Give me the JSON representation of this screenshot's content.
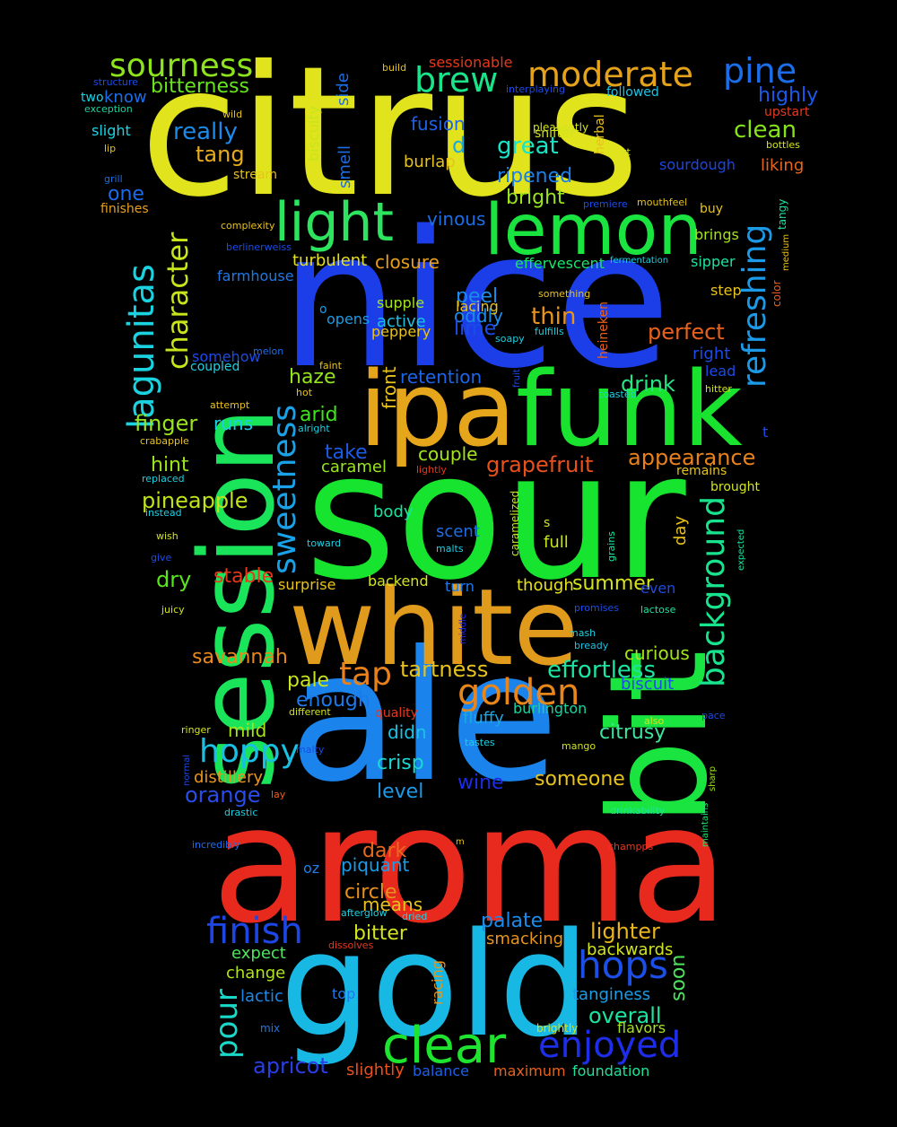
{
  "words": [
    {
      "text": "citrus",
      "color": "#e1e41c"
    },
    {
      "text": "nice",
      "color": "#1b3ee8"
    },
    {
      "text": "sour",
      "color": "#17e42e"
    },
    {
      "text": "aroma",
      "color": "#e82a1e"
    },
    {
      "text": "ale",
      "color": "#1a84ec"
    },
    {
      "text": "gold",
      "color": "#17b8e4"
    },
    {
      "text": "session",
      "color": "#19e45a"
    },
    {
      "text": "bit",
      "color": "#19e440"
    },
    {
      "text": "white",
      "color": "#e09a1c"
    },
    {
      "text": "ipa",
      "color": "#e5a61c"
    },
    {
      "text": "funk",
      "color": "#19e32e"
    },
    {
      "text": "lemon",
      "color": "#19e440"
    },
    {
      "text": "light",
      "color": "#2de45e"
    },
    {
      "text": "clear",
      "color": "#1ee42f"
    },
    {
      "text": "moderate",
      "color": "#e5a31c"
    },
    {
      "text": "sourness",
      "color": "#8de41c"
    },
    {
      "text": "pine",
      "color": "#1c6de8"
    },
    {
      "text": "brew",
      "color": "#1ae48a"
    },
    {
      "text": "golden",
      "color": "#e8861c"
    },
    {
      "text": "hops",
      "color": "#1c4fe8"
    },
    {
      "text": "enjoyed",
      "color": "#1e2ee8"
    },
    {
      "text": "finish",
      "color": "#1d47e5"
    },
    {
      "text": "hoppy",
      "color": "#1ac0e4"
    },
    {
      "text": "tap",
      "color": "#e8811c"
    },
    {
      "text": "lagunitas",
      "color": "#1ad2e0"
    },
    {
      "text": "refreshing",
      "color": "#1c9ae8"
    },
    {
      "text": "background",
      "color": "#19e48e"
    },
    {
      "text": "sweetness",
      "color": "#1aa2e8"
    },
    {
      "text": "character",
      "color": "#c7e41c"
    },
    {
      "text": "pour",
      "color": "#1ad8c7"
    },
    {
      "text": "bitterness",
      "color": "#66e41c"
    },
    {
      "text": "really",
      "color": "#1c8ae8"
    },
    {
      "text": "tang",
      "color": "#e8ab1c"
    },
    {
      "text": "one",
      "color": "#1c6ae8"
    },
    {
      "text": "great",
      "color": "#19e4c5"
    },
    {
      "text": "ripened",
      "color": "#1c7fe8"
    },
    {
      "text": "bright",
      "color": "#9ae41c"
    },
    {
      "text": "vinous",
      "color": "#1c6de8"
    },
    {
      "text": "fusion",
      "color": "#1d63e8"
    },
    {
      "text": "burlap",
      "color": "#e8c21c"
    },
    {
      "text": "d",
      "color": "#1aa8e4"
    },
    {
      "text": "clean",
      "color": "#84e41c"
    },
    {
      "text": "highly",
      "color": "#1c59e8"
    },
    {
      "text": "sourdough",
      "color": "#1c45e8"
    },
    {
      "text": "liking",
      "color": "#e8661c"
    },
    {
      "text": "closure",
      "color": "#e8a01c"
    },
    {
      "text": "turbulent",
      "color": "#e7e01c"
    },
    {
      "text": "peel",
      "color": "#1d8ce8"
    },
    {
      "text": "oddly",
      "color": "#1d8ce8"
    },
    {
      "text": "lacing",
      "color": "#e8c21c"
    },
    {
      "text": "thin",
      "color": "#e8951c"
    },
    {
      "text": "perfect",
      "color": "#e8611c"
    },
    {
      "text": "lime",
      "color": "#1e4be8"
    },
    {
      "text": "drink",
      "color": "#27e485"
    },
    {
      "text": "appearance",
      "color": "#e8811c"
    },
    {
      "text": "grapefruit",
      "color": "#e8501c"
    },
    {
      "text": "retention",
      "color": "#1c65e8"
    },
    {
      "text": "haze",
      "color": "#93e41c"
    },
    {
      "text": "arid",
      "color": "#41e41c"
    },
    {
      "text": "take",
      "color": "#1c5ae8"
    },
    {
      "text": "couple",
      "color": "#a5e41c"
    },
    {
      "text": "caramel",
      "color": "#9ae41c"
    },
    {
      "text": "finger",
      "color": "#9ae41c"
    },
    {
      "text": "runs",
      "color": "#1ad2e4"
    },
    {
      "text": "hint",
      "color": "#9ae41c"
    },
    {
      "text": "pineapple",
      "color": "#bfe41c"
    },
    {
      "text": "dry",
      "color": "#5ae41c"
    },
    {
      "text": "stable",
      "color": "#e8381c"
    },
    {
      "text": "surprise",
      "color": "#e8c21c"
    },
    {
      "text": "summer",
      "color": "#d4e41c"
    },
    {
      "text": "effortless",
      "color": "#1ae4a0"
    },
    {
      "text": "tartness",
      "color": "#e8c21c"
    },
    {
      "text": "savannah",
      "color": "#e8891c"
    },
    {
      "text": "pale",
      "color": "#c7e41c"
    },
    {
      "text": "enough",
      "color": "#1c79e8"
    },
    {
      "text": "mild",
      "color": "#a5e41c"
    },
    {
      "text": "curious",
      "color": "#a5e41c"
    },
    {
      "text": "citrusy",
      "color": "#3ee49c"
    },
    {
      "text": "crisp",
      "color": "#1ad8d2"
    },
    {
      "text": "level",
      "color": "#1c9ae8"
    },
    {
      "text": "wine",
      "color": "#1c2ce8"
    },
    {
      "text": "someone",
      "color": "#e8c21c"
    },
    {
      "text": "orange",
      "color": "#2a4ce8"
    },
    {
      "text": "distillery",
      "color": "#e8951c"
    },
    {
      "text": "didn",
      "color": "#1cc2e4"
    },
    {
      "text": "fluffy",
      "color": "#1aa8e4"
    },
    {
      "text": "dark",
      "color": "#e86a1c"
    },
    {
      "text": "piquant",
      "color": "#1a9de8"
    },
    {
      "text": "oz",
      "color": "#1c7fe8"
    },
    {
      "text": "circle",
      "color": "#e8901c"
    },
    {
      "text": "means",
      "color": "#e8c21c"
    },
    {
      "text": "palate",
      "color": "#1c8ae8"
    },
    {
      "text": "bitter",
      "color": "#d2e41c"
    },
    {
      "text": "lighter",
      "color": "#e8b41c"
    },
    {
      "text": "smacking",
      "color": "#e8951c"
    },
    {
      "text": "backwards",
      "color": "#d2e41c"
    },
    {
      "text": "soon",
      "color": "#4ee45e"
    },
    {
      "text": "expect",
      "color": "#4ee45e"
    },
    {
      "text": "change",
      "color": "#b0e41c"
    },
    {
      "text": "lactic",
      "color": "#1c8ae8"
    },
    {
      "text": "top",
      "color": "#1c79e8"
    },
    {
      "text": "overall",
      "color": "#1ae4a0"
    },
    {
      "text": "tanginess",
      "color": "#1a9de8"
    },
    {
      "text": "apricot",
      "color": "#2a3ee8"
    },
    {
      "text": "slightly",
      "color": "#e8501c"
    },
    {
      "text": "balance",
      "color": "#1c61e8"
    },
    {
      "text": "maximum",
      "color": "#e8611c"
    },
    {
      "text": "foundation",
      "color": "#1ae49c"
    },
    {
      "text": "flavors",
      "color": "#a5e41c"
    },
    {
      "text": "racing",
      "color": "#e8951c"
    },
    {
      "text": "mix",
      "color": "#1c79e8"
    },
    {
      "text": "brightly",
      "color": "#d2e41c"
    },
    {
      "text": "front",
      "color": "#e8c21c"
    },
    {
      "text": "body",
      "color": "#1ae4a0"
    },
    {
      "text": "scent",
      "color": "#1c6de8"
    },
    {
      "text": "backend",
      "color": "#d2e41c"
    },
    {
      "text": "turn",
      "color": "#1c79e8"
    },
    {
      "text": "though",
      "color": "#e8e41c"
    },
    {
      "text": "full",
      "color": "#c7e41c"
    },
    {
      "text": "even",
      "color": "#1c4be8"
    },
    {
      "text": "day",
      "color": "#e8c21c"
    },
    {
      "text": "biscuit",
      "color": "#1c4be8"
    },
    {
      "text": "burlington",
      "color": "#1ad2a0"
    },
    {
      "text": "supple",
      "color": "#a5e41c"
    },
    {
      "text": "opens",
      "color": "#1a9de8"
    },
    {
      "text": "active",
      "color": "#1cc2e4"
    },
    {
      "text": "peppery",
      "color": "#e8c21c"
    },
    {
      "text": "o",
      "color": "#1c9ae8"
    },
    {
      "text": "sipper",
      "color": "#1ae4a0"
    },
    {
      "text": "step",
      "color": "#e8c21c"
    },
    {
      "text": "right",
      "color": "#1c4be8"
    },
    {
      "text": "lead",
      "color": "#1c4be8"
    },
    {
      "text": "buy",
      "color": "#e8c21c"
    },
    {
      "text": "brings",
      "color": "#a5e41c"
    },
    {
      "text": "effervescent",
      "color": "#1ae46c"
    },
    {
      "text": "farmhouse",
      "color": "#1c79e8"
    },
    {
      "text": "somehow",
      "color": "#1c4be8"
    },
    {
      "text": "coupled",
      "color": "#1ad2e4"
    },
    {
      "text": "sessionable",
      "color": "#e8381c"
    },
    {
      "text": "followed",
      "color": "#1cc2e4"
    },
    {
      "text": "upstart",
      "color": "#e8381c"
    },
    {
      "text": "bottles",
      "color": "#d2e41c"
    },
    {
      "text": "know",
      "color": "#1c6de8"
    },
    {
      "text": "two",
      "color": "#1ad2e4"
    },
    {
      "text": "slight",
      "color": "#1ad2e4"
    },
    {
      "text": "stream",
      "color": "#e8c21c"
    },
    {
      "text": "finishes",
      "color": "#e8a01c"
    },
    {
      "text": "smell",
      "color": "#1c6de8"
    },
    {
      "text": "side",
      "color": "#1c6de8"
    },
    {
      "text": "biscuity",
      "color": "#c7e41c"
    },
    {
      "text": "herbal",
      "color": "#e8c21c"
    },
    {
      "text": "heineken",
      "color": "#e8611c"
    },
    {
      "text": "caramelized",
      "color": "#c7e41c"
    },
    {
      "text": "grains",
      "color": "#1ae4a0"
    },
    {
      "text": "tangy",
      "color": "#1ae4a0"
    },
    {
      "text": "color",
      "color": "#e8611c"
    },
    {
      "text": "medium",
      "color": "#e8c21c"
    },
    {
      "text": "remains",
      "color": "#e8c21c"
    },
    {
      "text": "brought",
      "color": "#d2e41c"
    },
    {
      "text": "t",
      "color": "#1c4be8"
    },
    {
      "text": "hitter",
      "color": "#d2e41c"
    },
    {
      "text": "expected",
      "color": "#1ae4a0"
    },
    {
      "text": "lactose",
      "color": "#1ae4a0"
    },
    {
      "text": "promises",
      "color": "#1c4be8"
    },
    {
      "text": "mash",
      "color": "#1ad2e4"
    },
    {
      "text": "bready",
      "color": "#1cc2e4"
    },
    {
      "text": "also",
      "color": "#d2e41c"
    },
    {
      "text": "pace",
      "color": "#1c4be8"
    },
    {
      "text": "mango",
      "color": "#d2e41c"
    },
    {
      "text": "tastes",
      "color": "#1ad2e4"
    },
    {
      "text": "drinkability",
      "color": "#1ae4a0"
    },
    {
      "text": "champps",
      "color": "#e8381c"
    },
    {
      "text": "sharp",
      "color": "#a5e41c"
    },
    {
      "text": "maintains",
      "color": "#1ae46c"
    },
    {
      "text": "m",
      "color": "#e8c21c"
    },
    {
      "text": "afterglow",
      "color": "#1ad2e4"
    },
    {
      "text": "dried",
      "color": "#1ad2e4"
    },
    {
      "text": "dissolves",
      "color": "#e8381c"
    },
    {
      "text": "quality",
      "color": "#e8381c"
    },
    {
      "text": "different",
      "color": "#d2e41c"
    },
    {
      "text": "ringer",
      "color": "#d2e41c"
    },
    {
      "text": "malty",
      "color": "#1c4be8"
    },
    {
      "text": "normal",
      "color": "#1c4be8"
    },
    {
      "text": "lay",
      "color": "#e8611c"
    },
    {
      "text": "drastic",
      "color": "#1ad2e4"
    },
    {
      "text": "incredibly",
      "color": "#1c6de8"
    },
    {
      "text": "middle",
      "color": "#1c2ce8"
    },
    {
      "text": "build",
      "color": "#e8c21c"
    },
    {
      "text": "interplaying",
      "color": "#1c4be8"
    },
    {
      "text": "pleasantly",
      "color": "#d2e41c"
    },
    {
      "text": "snifter",
      "color": "#d2e41c"
    },
    {
      "text": "vt",
      "color": "#d2e41c"
    },
    {
      "text": "mouthfeel",
      "color": "#e8c21c"
    },
    {
      "text": "premiere",
      "color": "#1c4be8"
    },
    {
      "text": "fermentation",
      "color": "#1ad2e4"
    },
    {
      "text": "something",
      "color": "#e8c21c"
    },
    {
      "text": "fulfills",
      "color": "#1ad2e4"
    },
    {
      "text": "soapy",
      "color": "#1ad2e4"
    },
    {
      "text": "toasted",
      "color": "#1ad2e4"
    },
    {
      "text": "fruit",
      "color": "#1c4be8"
    },
    {
      "text": "structure",
      "color": "#1c4be8"
    },
    {
      "text": "exception",
      "color": "#1ad2a0"
    },
    {
      "text": "wild",
      "color": "#e8c21c"
    },
    {
      "text": "lip",
      "color": "#e8c21c"
    },
    {
      "text": "grill",
      "color": "#1c6de8"
    },
    {
      "text": "complexity",
      "color": "#e8c21c"
    },
    {
      "text": "berlinerweiss",
      "color": "#1c4be8"
    },
    {
      "text": "melon",
      "color": "#1c6de8"
    },
    {
      "text": "faint",
      "color": "#e8c21c"
    },
    {
      "text": "hot",
      "color": "#e8c21c"
    },
    {
      "text": "attempt",
      "color": "#e8c21c"
    },
    {
      "text": "alright",
      "color": "#1ad2e4"
    },
    {
      "text": "crabapple",
      "color": "#e8c21c"
    },
    {
      "text": "lightly",
      "color": "#e8381c"
    },
    {
      "text": "replaced",
      "color": "#1ad2e4"
    },
    {
      "text": "instead",
      "color": "#1ad2e4"
    },
    {
      "text": "wish",
      "color": "#d2e41c"
    },
    {
      "text": "give",
      "color": "#1c4be8"
    },
    {
      "text": "toward",
      "color": "#1ad2e4"
    },
    {
      "text": "malts",
      "color": "#1ad2e4"
    },
    {
      "text": "juicy",
      "color": "#d2e41c"
    },
    {
      "text": "s",
      "color": "#d2e41c"
    }
  ]
}
